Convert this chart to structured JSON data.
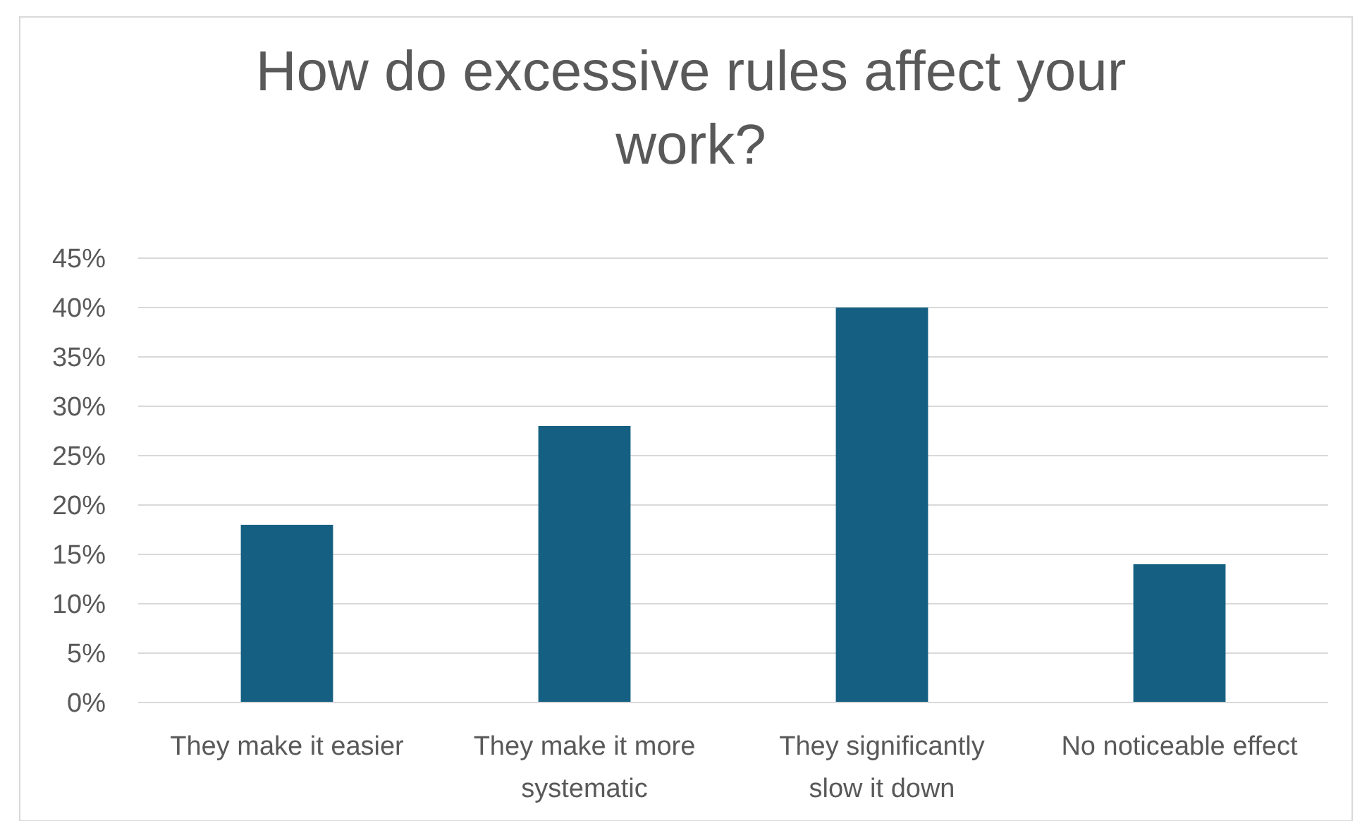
{
  "chart_data": {
    "type": "bar",
    "title": "How do excessive rules affect your work?",
    "categories": [
      "They make it easier",
      "They make it more systematic",
      "They significantly slow it down",
      "No noticeable effect"
    ],
    "values": [
      18,
      28,
      40,
      14
    ],
    "color": "#156082",
    "ylim": [
      0,
      45
    ],
    "yticks": [
      {
        "value": 0,
        "label": "0%"
      },
      {
        "value": 5,
        "label": "5%"
      },
      {
        "value": 10,
        "label": "10%"
      },
      {
        "value": 15,
        "label": "15%"
      },
      {
        "value": 20,
        "label": "20%"
      },
      {
        "value": 25,
        "label": "25%"
      },
      {
        "value": 30,
        "label": "30%"
      },
      {
        "value": 35,
        "label": "35%"
      },
      {
        "value": 40,
        "label": "40%"
      },
      {
        "value": 45,
        "label": "45%"
      }
    ],
    "grid": "y"
  }
}
